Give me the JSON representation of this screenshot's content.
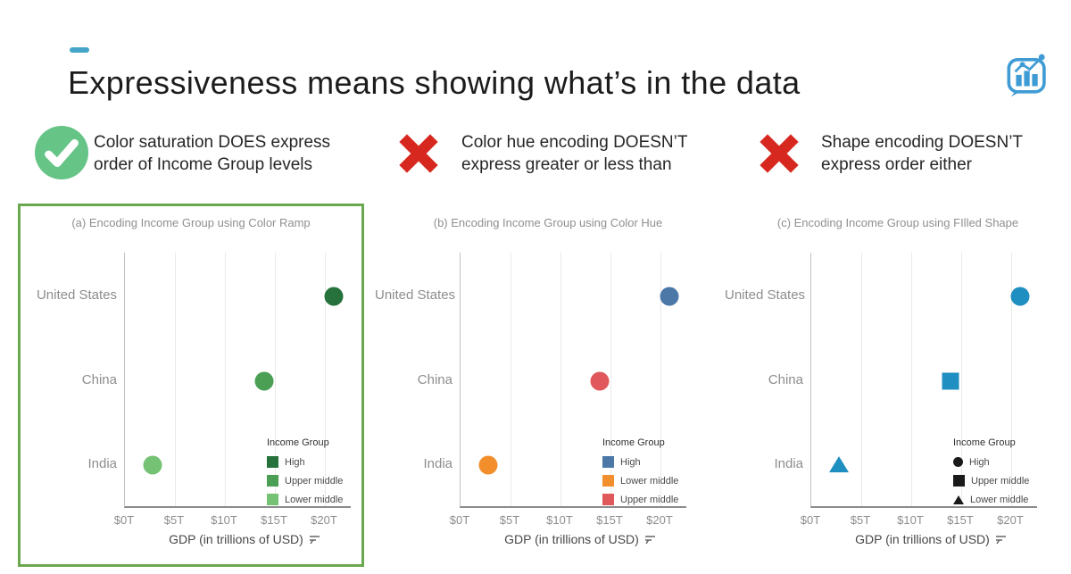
{
  "slide": {
    "title": "Expressiveness means showing what’s in the data",
    "accent_color": "#45a5c9"
  },
  "logo": {
    "name": "chart-in-speech-bubble",
    "color": "#3e9bd4"
  },
  "callouts": [
    {
      "icon": "check",
      "icon_color": "#66c487",
      "line1": "Color saturation DOES express",
      "line2": "order of Income Group levels"
    },
    {
      "icon": "cross",
      "icon_color": "#d7281f",
      "line1": "Color hue encoding DOESN’T",
      "line2": "express greater or less than"
    },
    {
      "icon": "cross",
      "icon_color": "#d7281f",
      "line1": "Shape encoding DOESN’T",
      "line2": "express order either"
    }
  ],
  "chart_data": [
    {
      "type": "scatter",
      "title": "(a) Encoding Income Group using Color Ramp",
      "highlighted": true,
      "highlight_color": "#6aa84f",
      "categories": [
        "United States",
        "China",
        "India"
      ],
      "xlabel": "GDP (in trillions of USD)",
      "xlim": [
        0,
        22.5
      ],
      "xticks": [
        {
          "label": "$0T",
          "value": 0
        },
        {
          "label": "$5T",
          "value": 5
        },
        {
          "label": "$10T",
          "value": 10
        },
        {
          "label": "$15T",
          "value": 15
        },
        {
          "label": "$20T",
          "value": 20
        }
      ],
      "points": [
        {
          "category": "United States",
          "gdp_trillions": 21.0,
          "income_group": "High",
          "shape": "circle",
          "color": "#26713c"
        },
        {
          "category": "China",
          "gdp_trillions": 14.0,
          "income_group": "Upper middle",
          "shape": "circle",
          "color": "#4a9f55"
        },
        {
          "category": "India",
          "gdp_trillions": 2.9,
          "income_group": "Lower middle",
          "shape": "circle",
          "color": "#76c275"
        }
      ],
      "legend": {
        "title": "Income Group",
        "entries": [
          {
            "label": "High",
            "shape": "square",
            "color": "#26713c"
          },
          {
            "label": "Upper middle",
            "shape": "square",
            "color": "#4a9f55"
          },
          {
            "label": "Lower middle",
            "shape": "square",
            "color": "#76c275"
          }
        ]
      }
    },
    {
      "type": "scatter",
      "title": "(b) Encoding Income Group using Color Hue",
      "highlighted": false,
      "categories": [
        "United States",
        "China",
        "India"
      ],
      "xlabel": "GDP (in trillions of USD)",
      "xlim": [
        0,
        22.5
      ],
      "xticks": [
        {
          "label": "$0T",
          "value": 0
        },
        {
          "label": "$5T",
          "value": 5
        },
        {
          "label": "$10T",
          "value": 10
        },
        {
          "label": "$15T",
          "value": 15
        },
        {
          "label": "$20T",
          "value": 20
        }
      ],
      "points": [
        {
          "category": "United States",
          "gdp_trillions": 21.0,
          "income_group": "High",
          "shape": "circle",
          "color": "#4c78a8"
        },
        {
          "category": "China",
          "gdp_trillions": 14.0,
          "income_group": "Upper middle",
          "shape": "circle",
          "color": "#e0585b"
        },
        {
          "category": "India",
          "gdp_trillions": 2.9,
          "income_group": "Lower middle",
          "shape": "circle",
          "color": "#f28e2b"
        }
      ],
      "legend": {
        "title": "Income Group",
        "entries": [
          {
            "label": "High",
            "shape": "square",
            "color": "#4c78a8"
          },
          {
            "label": "Lower middle",
            "shape": "square",
            "color": "#f28e2b"
          },
          {
            "label": "Upper middle",
            "shape": "square",
            "color": "#e0585b"
          }
        ]
      }
    },
    {
      "type": "scatter",
      "title": "(c) Encoding Income Group using FIlled Shape",
      "highlighted": false,
      "categories": [
        "United States",
        "China",
        "India"
      ],
      "xlabel": "GDP (in trillions of USD)",
      "xlim": [
        0,
        22.5
      ],
      "xticks": [
        {
          "label": "$0T",
          "value": 0
        },
        {
          "label": "$5T",
          "value": 5
        },
        {
          "label": "$10T",
          "value": 10
        },
        {
          "label": "$15T",
          "value": 15
        },
        {
          "label": "$20T",
          "value": 20
        }
      ],
      "points": [
        {
          "category": "United States",
          "gdp_trillions": 21.0,
          "income_group": "High",
          "shape": "circle",
          "color": "#1f8ec0"
        },
        {
          "category": "China",
          "gdp_trillions": 14.0,
          "income_group": "Upper middle",
          "shape": "square",
          "color": "#1f8ec0"
        },
        {
          "category": "India",
          "gdp_trillions": 2.9,
          "income_group": "Lower middle",
          "shape": "triangle",
          "color": "#1f8ec0"
        }
      ],
      "legend": {
        "title": "Income Group",
        "entries": [
          {
            "label": "High",
            "shape": "circle",
            "color": "#1a1a1a"
          },
          {
            "label": "Upper middle",
            "shape": "square",
            "color": "#1a1a1a"
          },
          {
            "label": "Lower middle",
            "shape": "triangle",
            "color": "#1a1a1a"
          }
        ]
      }
    }
  ]
}
